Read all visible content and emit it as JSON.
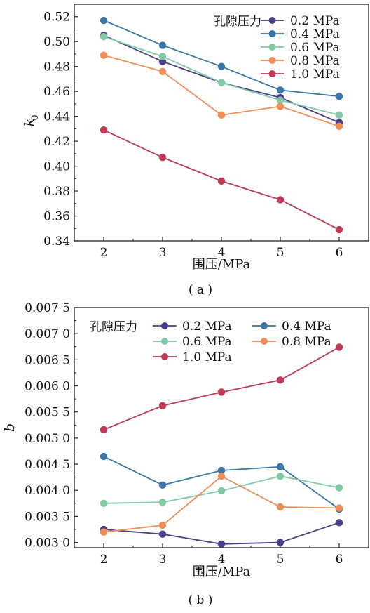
{
  "chart_data": [
    {
      "type": "line",
      "panel_label": "( a )",
      "xlabel": "围压/MPa",
      "ylabel": "k",
      "ylabel_sub": "0",
      "x": [
        2,
        3,
        4,
        5,
        6
      ],
      "xlim": [
        1.5,
        6.5
      ],
      "ylim": [
        0.34,
        0.53
      ],
      "x_ticks": [
        "2",
        "3",
        "4",
        "5",
        "6"
      ],
      "y_ticks": [
        "0.34",
        "0.36",
        "0.38",
        "0.40",
        "0.42",
        "0.44",
        "0.46",
        "0.48",
        "0.50",
        "0.52"
      ],
      "y_tick_values": [
        0.34,
        0.36,
        0.38,
        0.4,
        0.42,
        0.44,
        0.46,
        0.48,
        0.5,
        0.52
      ],
      "grid": false,
      "legend_title": "孔隙压力",
      "legend_position": "top-right",
      "series": [
        {
          "name": "0.2 MPa",
          "color": "#4b3f8c",
          "values": [
            0.505,
            0.484,
            0.467,
            0.455,
            0.435
          ]
        },
        {
          "name": "0.4 MPa",
          "color": "#3a76a8",
          "values": [
            0.517,
            0.497,
            0.48,
            0.461,
            0.456
          ]
        },
        {
          "name": "0.6 MPa",
          "color": "#82c9a6",
          "values": [
            0.504,
            0.488,
            0.467,
            0.453,
            0.441
          ]
        },
        {
          "name": "0.8 MPa",
          "color": "#ef8d57",
          "values": [
            0.489,
            0.476,
            0.441,
            0.448,
            0.432
          ]
        },
        {
          "name": "1.0 MPa",
          "color": "#bf3a57",
          "values": [
            0.429,
            0.407,
            0.388,
            0.373,
            0.349
          ]
        }
      ]
    },
    {
      "type": "line",
      "panel_label": "( b )",
      "xlabel": "围压/MPa",
      "ylabel": "b",
      "x": [
        2,
        3,
        4,
        5,
        6
      ],
      "xlim": [
        1.5,
        6.5
      ],
      "ylim": [
        0.0029,
        0.0075
      ],
      "x_ticks": [
        "2",
        "3",
        "4",
        "5",
        "6"
      ],
      "y_ticks": [
        "0.003 0",
        "0.003 5",
        "0.004 0",
        "0.004 5",
        "0.005 0",
        "0.005 5",
        "0.006 0",
        "0.006 5",
        "0.007 0",
        "0.007 5"
      ],
      "y_tick_values": [
        0.003,
        0.0035,
        0.004,
        0.0045,
        0.005,
        0.0055,
        0.006,
        0.0065,
        0.007,
        0.0075
      ],
      "grid": false,
      "legend_title": "孔隙压力",
      "legend_position": "top-left",
      "series": [
        {
          "name": "0.2 MPa",
          "color": "#4b3f8c",
          "values": [
            0.00325,
            0.00316,
            0.00297,
            0.003,
            0.00338
          ]
        },
        {
          "name": "0.4 MPa",
          "color": "#3a76a8",
          "values": [
            0.00465,
            0.0041,
            0.00438,
            0.00445,
            0.00364
          ]
        },
        {
          "name": "0.6 MPa",
          "color": "#82c9a6",
          "values": [
            0.00375,
            0.00377,
            0.00399,
            0.00427,
            0.00405
          ]
        },
        {
          "name": "0.8 MPa",
          "color": "#ef8d57",
          "values": [
            0.0032,
            0.00333,
            0.00427,
            0.00368,
            0.00366
          ]
        },
        {
          "name": "1.0 MPa",
          "color": "#bf3a57",
          "values": [
            0.00516,
            0.00562,
            0.00588,
            0.00611,
            0.00674
          ]
        }
      ]
    }
  ]
}
